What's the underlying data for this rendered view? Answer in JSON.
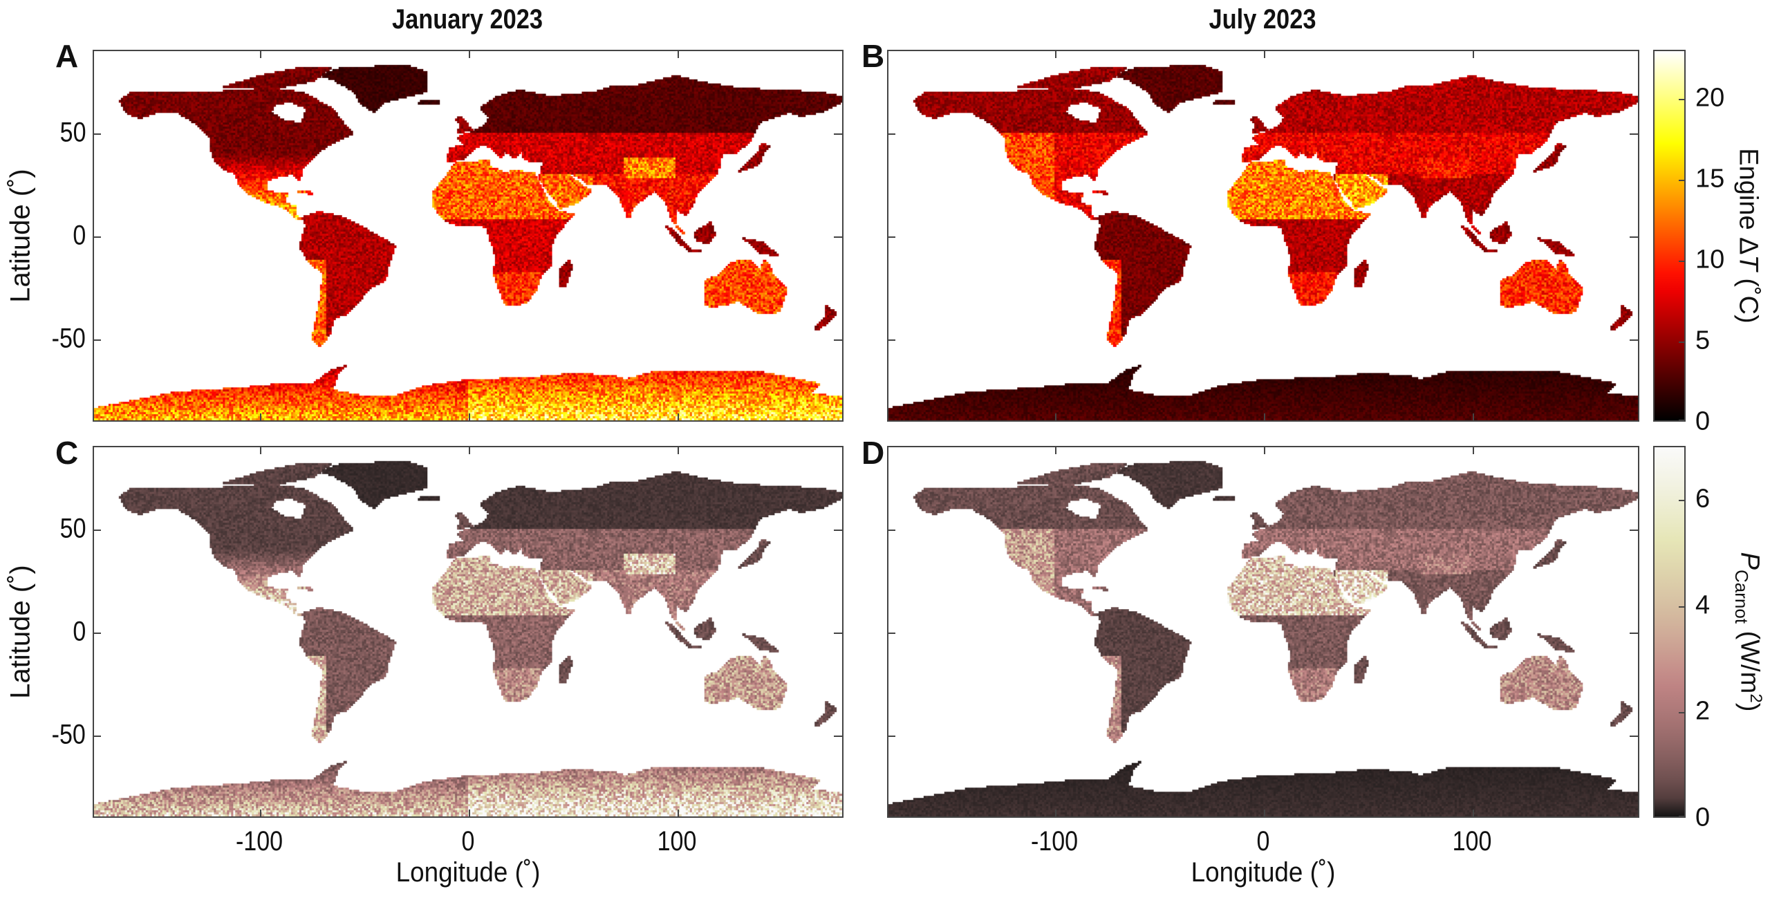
{
  "titles": {
    "left": "January 2023",
    "right": "July 2023"
  },
  "panels": [
    {
      "letter": "A",
      "month": "January 2023",
      "variable": "Engine ΔT"
    },
    {
      "letter": "B",
      "month": "July 2023",
      "variable": "Engine ΔT"
    },
    {
      "letter": "C",
      "month": "January 2023",
      "variable": "P Carnot"
    },
    {
      "letter": "D",
      "month": "July 2023",
      "variable": "P Carnot"
    }
  ],
  "axes": {
    "xlabel": "Longitude (˚)",
    "ylabel": "Latitude (˚)",
    "xlim": [
      -180,
      180
    ],
    "ylim": [
      -90,
      90
    ],
    "xticks": [
      {
        "value": -100,
        "label": "-100"
      },
      {
        "value": 0,
        "label": "0"
      },
      {
        "value": 100,
        "label": "100"
      }
    ],
    "yticks": [
      {
        "value": 50,
        "label": "50"
      },
      {
        "value": 0,
        "label": "0"
      },
      {
        "value": -50,
        "label": "-50"
      }
    ]
  },
  "colorbars": [
    {
      "colormap": "hot",
      "range": [
        0,
        23
      ],
      "ticks": [
        {
          "value": 0,
          "label": "0"
        },
        {
          "value": 5,
          "label": "5"
        },
        {
          "value": 10,
          "label": "10"
        },
        {
          "value": 15,
          "label": "15"
        },
        {
          "value": 20,
          "label": "20"
        }
      ],
      "label": {
        "pre": "Engine Δ",
        "italic": "T",
        "post": " (˚C)"
      }
    },
    {
      "colormap": "pink",
      "range": [
        0,
        7
      ],
      "ticks": [
        {
          "value": 0,
          "label": "0"
        },
        {
          "value": 2,
          "label": "2"
        },
        {
          "value": 4,
          "label": "4"
        },
        {
          "value": 6,
          "label": "6"
        }
      ],
      "label": {
        "italic": "P",
        "sub": "Carnot",
        "post": " (W/m",
        "sup": "2",
        "end": ")"
      }
    }
  ],
  "chart_data": {
    "type": "heatmap",
    "xlabel": "Longitude (˚)",
    "ylabel": "Latitude (˚)",
    "xlim": [
      -180,
      180
    ],
    "ylim": [
      -90,
      90
    ],
    "grid": false,
    "panels": [
      "A",
      "B",
      "C",
      "D"
    ],
    "colorbar_ranges": {
      "engine_delta_T_C": [
        0,
        23
      ],
      "P_carnot_W_m2": [
        0,
        7
      ]
    },
    "ocean_color": "#ffffff"
  }
}
